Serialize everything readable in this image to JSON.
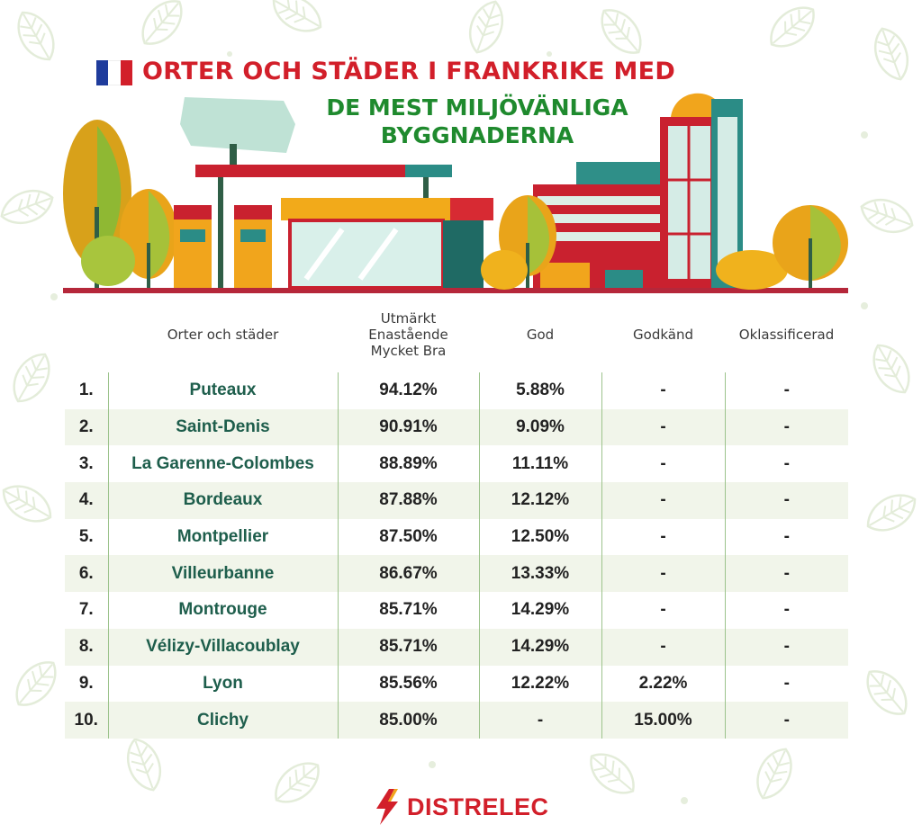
{
  "title_line1": "ORTER OCH STÄDER I FRANKRIKE MED",
  "title_line2": "DE MEST MILJÖVÄNLIGA BYGGNADERNA",
  "brand": "DISTRELEC",
  "colors": {
    "title_red": "#d21f2a",
    "title_green": "#1f8a2e",
    "city_text": "#1e5e4c",
    "row_shade": "#f1f5ea",
    "divider": "#9cc38c"
  },
  "icons": [
    "france-flag-icon",
    "gas-station-illustration",
    "buildings-illustration",
    "leaf-pattern",
    "distrelec-bolt-icon"
  ],
  "chart_data": {
    "type": "table",
    "columns": [
      "",
      "Orter och städer",
      "Utmärkt\nEnastående\nMycket Bra",
      "God",
      "Godkänd",
      "Oklassificerad"
    ],
    "rows": [
      {
        "rank": "1.",
        "city": "Puteaux",
        "excellent": "94.12%",
        "good": "5.88%",
        "pass": "-",
        "unclassified": "-"
      },
      {
        "rank": "2.",
        "city": "Saint-Denis",
        "excellent": "90.91%",
        "good": "9.09%",
        "pass": "-",
        "unclassified": "-"
      },
      {
        "rank": "3.",
        "city": "La Garenne-Colombes",
        "excellent": "88.89%",
        "good": "11.11%",
        "pass": "-",
        "unclassified": "-"
      },
      {
        "rank": "4.",
        "city": "Bordeaux",
        "excellent": "87.88%",
        "good": "12.12%",
        "pass": "-",
        "unclassified": "-"
      },
      {
        "rank": "5.",
        "city": "Montpellier",
        "excellent": "87.50%",
        "good": "12.50%",
        "pass": "-",
        "unclassified": "-"
      },
      {
        "rank": "6.",
        "city": "Villeurbanne",
        "excellent": "86.67%",
        "good": "13.33%",
        "pass": "-",
        "unclassified": "-"
      },
      {
        "rank": "7.",
        "city": "Montrouge",
        "excellent": "85.71%",
        "good": "14.29%",
        "pass": "-",
        "unclassified": "-"
      },
      {
        "rank": "8.",
        "city": "Vélizy-Villacoublay",
        "excellent": "85.71%",
        "good": "14.29%",
        "pass": "-",
        "unclassified": "-"
      },
      {
        "rank": "9.",
        "city": "Lyon",
        "excellent": "85.56%",
        "good": "12.22%",
        "pass": "2.22%",
        "unclassified": "-"
      },
      {
        "rank": "10.",
        "city": "Clichy",
        "excellent": "85.00%",
        "good": "-",
        "pass": "15.00%",
        "unclassified": "-"
      }
    ]
  }
}
